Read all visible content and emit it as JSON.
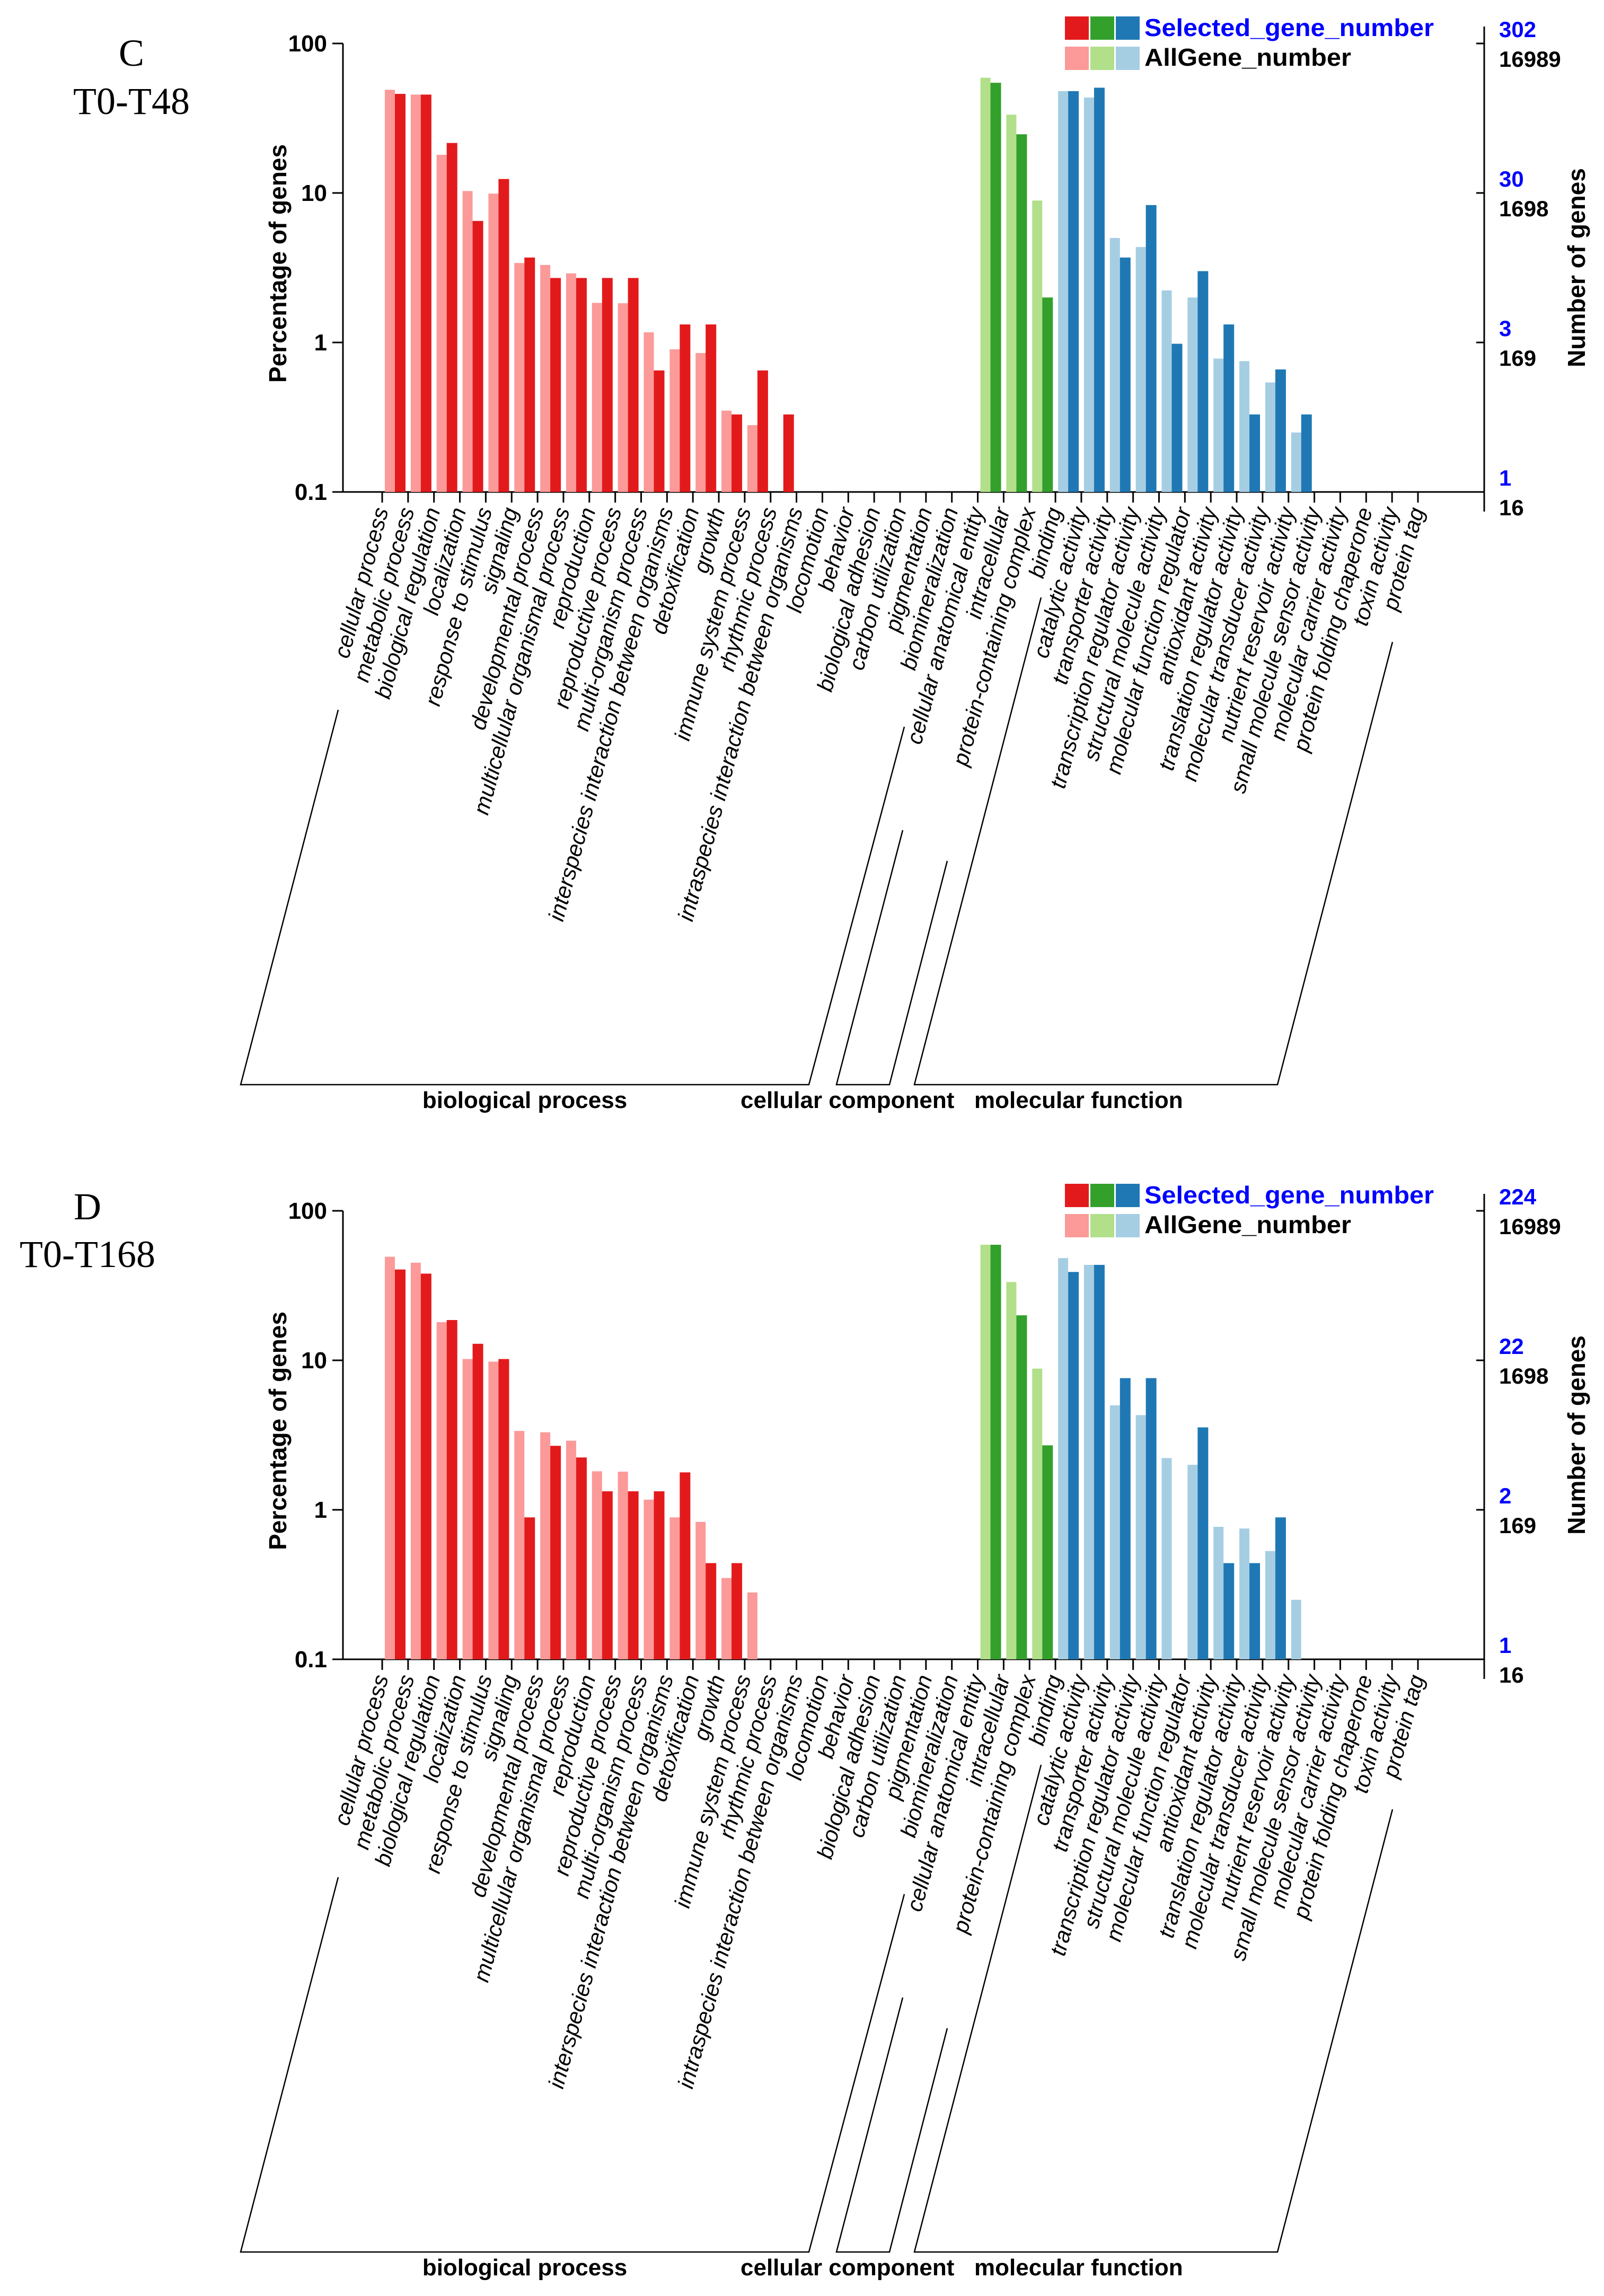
{
  "chart_data": [
    {
      "type": "bar",
      "panel": "C",
      "subtitle": "T0-T48",
      "ylabel": "Percentage of genes",
      "y2label": "Number of genes",
      "yscale": "log",
      "ylim": [
        0.1,
        100
      ],
      "yticks": [
        "100",
        "10",
        "1",
        "0.1"
      ],
      "right_axis": {
        "selected": [
          "302",
          "30",
          "3",
          "1"
        ],
        "all": [
          "16989",
          "1698",
          "169",
          "16"
        ]
      },
      "legend": {
        "selected": "Selected_gene_number",
        "all": "AllGene_number",
        "placement": "top-right"
      },
      "colors": {
        "bp": [
          "#FB9A99",
          "#E31A1C"
        ],
        "cc": [
          "#B2DF8A",
          "#33A02C"
        ],
        "mf": [
          "#A6CEE3",
          "#1F78B4"
        ]
      },
      "groups": [
        {
          "name": "biological process",
          "count": 23
        },
        {
          "name": "cellular component",
          "count": 3
        },
        {
          "name": "molecular function",
          "count": 15
        }
      ],
      "categories": [
        "cellular process",
        "metabolic process",
        "biological regulation",
        "localization",
        "response to stimulus",
        "signaling",
        "developmental process",
        "multicellular organismal process",
        "reproduction",
        "reproductive process",
        "multi-organism process",
        "interspecies interaction between organisms",
        "detoxification",
        "growth",
        "immune system process",
        "rhythmic process",
        "intraspecies interaction between organisms",
        "locomotion",
        "behavior",
        "biological adhesion",
        "carbon utilization",
        "pigmentation",
        "biomineralization",
        "cellular anatomical entity",
        "intracellular",
        "protein-containing complex",
        "binding",
        "catalytic activity",
        "transporter activity",
        "transcription regulator activity",
        "structural molecule activity",
        "molecular function regulator",
        "antioxidant activity",
        "translation regulator activity",
        "molecular transducer activity",
        "nutrient reservoir activity",
        "small molecule sensor activity",
        "molecular carrier activity",
        "protein folding chaperone",
        "toxin activity",
        "protein tag"
      ],
      "series": [
        {
          "name": "AllGene_number",
          "values": [
            49,
            45.5,
            18,
            10.3,
            9.9,
            3.4,
            3.3,
            2.9,
            1.84,
            1.83,
            1.17,
            0.9,
            0.85,
            0.35,
            0.28,
            null,
            null,
            null,
            null,
            null,
            null,
            null,
            null,
            59,
            33.4,
            8.9,
            48,
            43.5,
            5.0,
            4.35,
            2.23,
            2.0,
            0.78,
            0.75,
            0.54,
            0.25,
            null,
            null,
            null,
            null,
            null
          ]
        },
        {
          "name": "Selected_gene_number",
          "values": [
            46,
            45.5,
            21.6,
            6.5,
            12.4,
            3.7,
            2.7,
            2.7,
            2.7,
            2.7,
            0.65,
            1.32,
            1.32,
            0.33,
            0.65,
            0.33,
            null,
            null,
            null,
            null,
            null,
            null,
            null,
            54.6,
            24.7,
            2.0,
            48,
            50.6,
            3.7,
            8.3,
            0.98,
            3.0,
            1.32,
            0.33,
            0.66,
            0.33,
            null,
            null,
            null,
            null,
            null
          ]
        }
      ]
    },
    {
      "type": "bar",
      "panel": "D",
      "subtitle": "T0-T168",
      "ylabel": "Percentage of genes",
      "y2label": "Number of genes",
      "yscale": "log",
      "ylim": [
        0.1,
        100
      ],
      "yticks": [
        "100",
        "10",
        "1",
        "0.1"
      ],
      "right_axis": {
        "selected": [
          "224",
          "22",
          "2",
          "1"
        ],
        "all": [
          "16989",
          "1698",
          "169",
          "16"
        ]
      },
      "legend": {
        "selected": "Selected_gene_number",
        "all": "AllGene_number",
        "placement": "top-right"
      },
      "colors": {
        "bp": [
          "#FB9A99",
          "#E31A1C"
        ],
        "cc": [
          "#B2DF8A",
          "#33A02C"
        ],
        "mf": [
          "#A6CEE3",
          "#1F78B4"
        ]
      },
      "groups": [
        {
          "name": "biological process",
          "count": 23
        },
        {
          "name": "cellular component",
          "count": 3
        },
        {
          "name": "molecular function",
          "count": 15
        }
      ],
      "categories": [
        "cellular process",
        "metabolic process",
        "biological regulation",
        "localization",
        "response to stimulus",
        "signaling",
        "developmental process",
        "multicellular organismal process",
        "reproduction",
        "reproductive process",
        "multi-organism process",
        "interspecies interaction between organisms",
        "detoxification",
        "growth",
        "immune system process",
        "rhythmic process",
        "intraspecies interaction between organisms",
        "locomotion",
        "behavior",
        "biological adhesion",
        "carbon utilization",
        "pigmentation",
        "biomineralization",
        "cellular anatomical entity",
        "intracellular",
        "protein-containing complex",
        "binding",
        "catalytic activity",
        "transporter activity",
        "transcription regulator activity",
        "structural molecule activity",
        "molecular function regulator",
        "antioxidant activity",
        "translation regulator activity",
        "molecular transducer activity",
        "nutrient reservoir activity",
        "small molecule sensor activity",
        "molecular carrier activity",
        "protein folding chaperone",
        "toxin activity",
        "protein tag"
      ],
      "series": [
        {
          "name": "AllGene_number",
          "values": [
            49.3,
            45,
            18,
            10.2,
            9.8,
            3.37,
            3.3,
            2.9,
            1.81,
            1.8,
            1.17,
            0.89,
            0.83,
            0.35,
            0.28,
            null,
            null,
            null,
            null,
            null,
            null,
            null,
            null,
            59.3,
            33.4,
            8.8,
            48.3,
            43.5,
            5.0,
            4.3,
            2.22,
            2.0,
            0.77,
            0.75,
            0.53,
            0.25,
            null,
            null,
            null,
            null,
            null
          ]
        },
        {
          "name": "Selected_gene_number",
          "values": [
            40.5,
            38,
            18.6,
            12.9,
            10.2,
            0.89,
            2.68,
            2.24,
            1.33,
            1.33,
            1.33,
            1.78,
            0.44,
            0.44,
            null,
            null,
            null,
            null,
            null,
            null,
            null,
            null,
            null,
            59.3,
            20,
            2.7,
            39,
            43.5,
            7.6,
            7.6,
            null,
            3.56,
            0.44,
            0.44,
            0.89,
            null,
            null,
            null,
            null,
            null,
            null
          ]
        }
      ]
    }
  ]
}
